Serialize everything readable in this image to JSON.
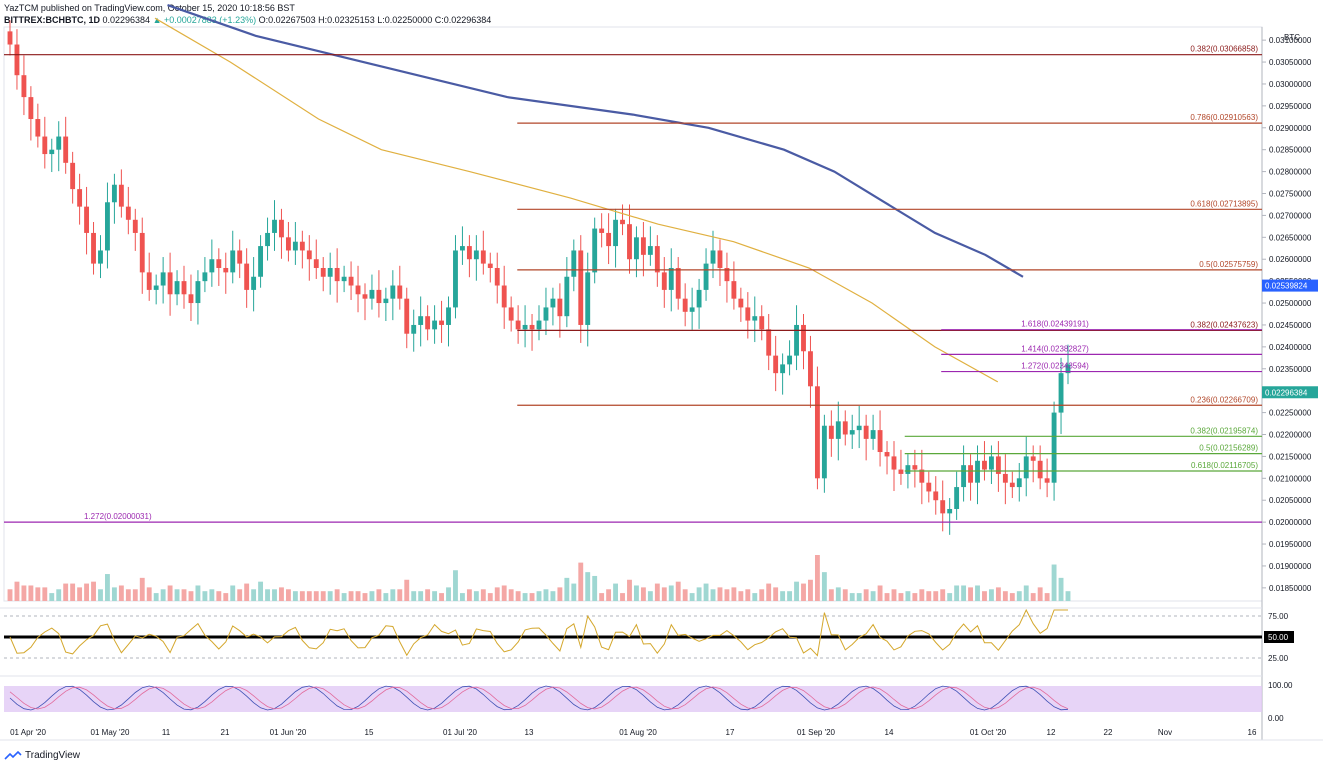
{
  "header": {
    "line1": "YazTCM published on TradingView.com, October 15, 2020 10:18:56 BST",
    "symbol": "BITTREX:BCHBTC, 1D",
    "price": "0.02296384",
    "change": "▲ +0.00027883 (+1.23%)",
    "ohlc": "O:0.02267503 H:0.02325153 L:0.02250000 C:0.02296384"
  },
  "footer": {
    "brand": "TradingView"
  },
  "colors": {
    "up": "#26a69a",
    "down": "#ef5350",
    "ma_slow": "#4a5ba4",
    "ma_fast": "#e0b040",
    "fib_red": "#b2472a",
    "fib_purple": "#9c27b0",
    "fib_green": "#5aa83a",
    "rsi": "#d4a72c",
    "stoch_k": "#3f51b5",
    "stoch_d": "#e26b9c",
    "stoch_band": "#e1c9f5"
  },
  "chart_data": {
    "type": "candlestick",
    "currency_label": "BTC",
    "ylim": [
      0.0182,
      0.0313
    ],
    "y_ticks": [
      "0.03100000",
      "0.03050000",
      "0.03000000",
      "0.02950000",
      "0.02900000",
      "0.02850000",
      "0.02800000",
      "0.02750000",
      "0.02700000",
      "0.02650000",
      "0.02600000",
      "0.02550000",
      "0.02500000",
      "0.02450000",
      "0.02400000",
      "0.02350000",
      "0.02300000",
      "0.02250000",
      "0.02200000",
      "0.02150000",
      "0.02100000",
      "0.02050000",
      "0.02000000",
      "0.01950000",
      "0.01900000",
      "0.01850000"
    ],
    "x_labels": [
      "01 Apr '20",
      "01 May '20",
      "11",
      "21",
      "01 Jun '20",
      "15",
      "01 Jul '20",
      "13",
      "01 Aug '20",
      "17",
      "01 Sep '20",
      "14",
      "01 Oct '20",
      "12",
      "22",
      "Nov",
      "16"
    ],
    "closes": [
      0.0309,
      0.0302,
      0.0297,
      0.0292,
      0.0288,
      0.0284,
      0.0285,
      0.0288,
      0.0282,
      0.0276,
      0.0272,
      0.0266,
      0.0259,
      0.0262,
      0.0273,
      0.0277,
      0.0272,
      0.0269,
      0.0266,
      0.0257,
      0.0253,
      0.0254,
      0.0257,
      0.0252,
      0.0255,
      0.0252,
      0.025,
      0.0255,
      0.0257,
      0.026,
      0.0258,
      0.0257,
      0.0262,
      0.0259,
      0.0253,
      0.0256,
      0.0263,
      0.0266,
      0.0269,
      0.0265,
      0.0262,
      0.0264,
      0.0262,
      0.026,
      0.0258,
      0.0256,
      0.0258,
      0.0255,
      0.0256,
      0.0254,
      0.0252,
      0.0251,
      0.0253,
      0.025,
      0.0251,
      0.0254,
      0.0251,
      0.0243,
      0.0245,
      0.0247,
      0.0244,
      0.0246,
      0.0245,
      0.0249,
      0.0262,
      0.0263,
      0.026,
      0.0262,
      0.0259,
      0.0258,
      0.0254,
      0.0249,
      0.0246,
      0.0244,
      0.0245,
      0.0244,
      0.0246,
      0.0249,
      0.0251,
      0.0247,
      0.0256,
      0.0262,
      0.0245,
      0.0257,
      0.0267,
      0.0266,
      0.0263,
      0.0269,
      0.0268,
      0.026,
      0.0265,
      0.0261,
      0.0263,
      0.0257,
      0.0253,
      0.0258,
      0.0251,
      0.0248,
      0.0249,
      0.0253,
      0.0259,
      0.0262,
      0.0258,
      0.0255,
      0.0251,
      0.0249,
      0.0246,
      0.0247,
      0.0244,
      0.0238,
      0.0234,
      0.0236,
      0.0238,
      0.0245,
      0.0239,
      0.0231,
      0.021,
      0.0222,
      0.0219,
      0.0223,
      0.022,
      0.0221,
      0.0222,
      0.0219,
      0.0221,
      0.0216,
      0.0215,
      0.0212,
      0.0211,
      0.0213,
      0.0212,
      0.0209,
      0.0207,
      0.0205,
      0.0202,
      0.0203,
      0.0208,
      0.0213,
      0.0209,
      0.0214,
      0.0212,
      0.0215,
      0.0211,
      0.0209,
      0.0208,
      0.021,
      0.0215,
      0.0214,
      0.021,
      0.0209,
      0.0225,
      0.0234,
      0.0236
    ],
    "ma_slow": [
      [
        0.13,
        0.0318
      ],
      [
        0.2,
        0.0311
      ],
      [
        0.3,
        0.0304
      ],
      [
        0.4,
        0.0297
      ],
      [
        0.5,
        0.0293
      ],
      [
        0.56,
        0.029
      ],
      [
        0.62,
        0.0285
      ],
      [
        0.66,
        0.028
      ],
      [
        0.7,
        0.0273
      ],
      [
        0.74,
        0.0266
      ],
      [
        0.78,
        0.0261
      ],
      [
        0.81,
        0.0256
      ]
    ],
    "ma_fast": [
      [
        0.12,
        0.0315
      ],
      [
        0.18,
        0.0305
      ],
      [
        0.25,
        0.0292
      ],
      [
        0.3,
        0.0285
      ],
      [
        0.37,
        0.028
      ],
      [
        0.45,
        0.0274
      ],
      [
        0.52,
        0.0268
      ],
      [
        0.58,
        0.0264
      ],
      [
        0.64,
        0.0258
      ],
      [
        0.69,
        0.025
      ],
      [
        0.74,
        0.024
      ],
      [
        0.79,
        0.0232
      ]
    ],
    "fib_levels": [
      {
        "label": "0.382(0.03066858)",
        "value": 0.03066858,
        "color": "#8b1a1a",
        "x0": 0.0
      },
      {
        "label": "0.786(0.02910563)",
        "value": 0.02910563,
        "color": "#b2472a",
        "x0": 0.408
      },
      {
        "label": "0.618(0.02713895)",
        "value": 0.02713895,
        "color": "#b2472a",
        "x0": 0.408
      },
      {
        "label": "0.5(0.02575759)",
        "value": 0.02575759,
        "color": "#b2472a",
        "x0": 0.408
      },
      {
        "label": "0.382(0.02437623)",
        "value": 0.02437623,
        "color": "#8b1a1a",
        "x0": 0.408
      },
      {
        "label": "1.618(0.02439191)",
        "value": 0.02439191,
        "color": "#9c27b0",
        "x0": 0.745,
        "label_left": true
      },
      {
        "label": "1.414(0.02382827)",
        "value": 0.02382827,
        "color": "#9c27b0",
        "x0": 0.745,
        "label_left": true
      },
      {
        "label": "1.272(0.02343594)",
        "value": 0.02343594,
        "color": "#9c27b0",
        "x0": 0.745,
        "label_left": true
      },
      {
        "label": "0.236(0.02266709)",
        "value": 0.02266709,
        "color": "#b2472a",
        "x0": 0.408
      },
      {
        "label": "0.382(0.02195874)",
        "value": 0.02195874,
        "color": "#5aa83a",
        "x0": 0.716
      },
      {
        "label": "0.5(0.02156289)",
        "value": 0.02156289,
        "color": "#5aa83a",
        "x0": 0.716
      },
      {
        "label": "0.618(0.02116705)",
        "value": 0.02116705,
        "color": "#5aa83a",
        "x0": 0.716
      },
      {
        "label": "1.272(0.02000031)",
        "value": 0.02000031,
        "color": "#9c27b0",
        "x0": 0.0,
        "label_left": true
      }
    ],
    "price_tags": [
      {
        "label": "0.02539824",
        "value": 0.02539824,
        "color": "#2962ff"
      },
      {
        "label": "0.02296384",
        "value": 0.02296384,
        "color": "#26a69a"
      }
    ],
    "rsi": {
      "levels": [
        "75.00",
        "50.00",
        "25.00"
      ]
    },
    "stoch": {
      "levels": [
        "100.00",
        "0.00"
      ]
    }
  }
}
